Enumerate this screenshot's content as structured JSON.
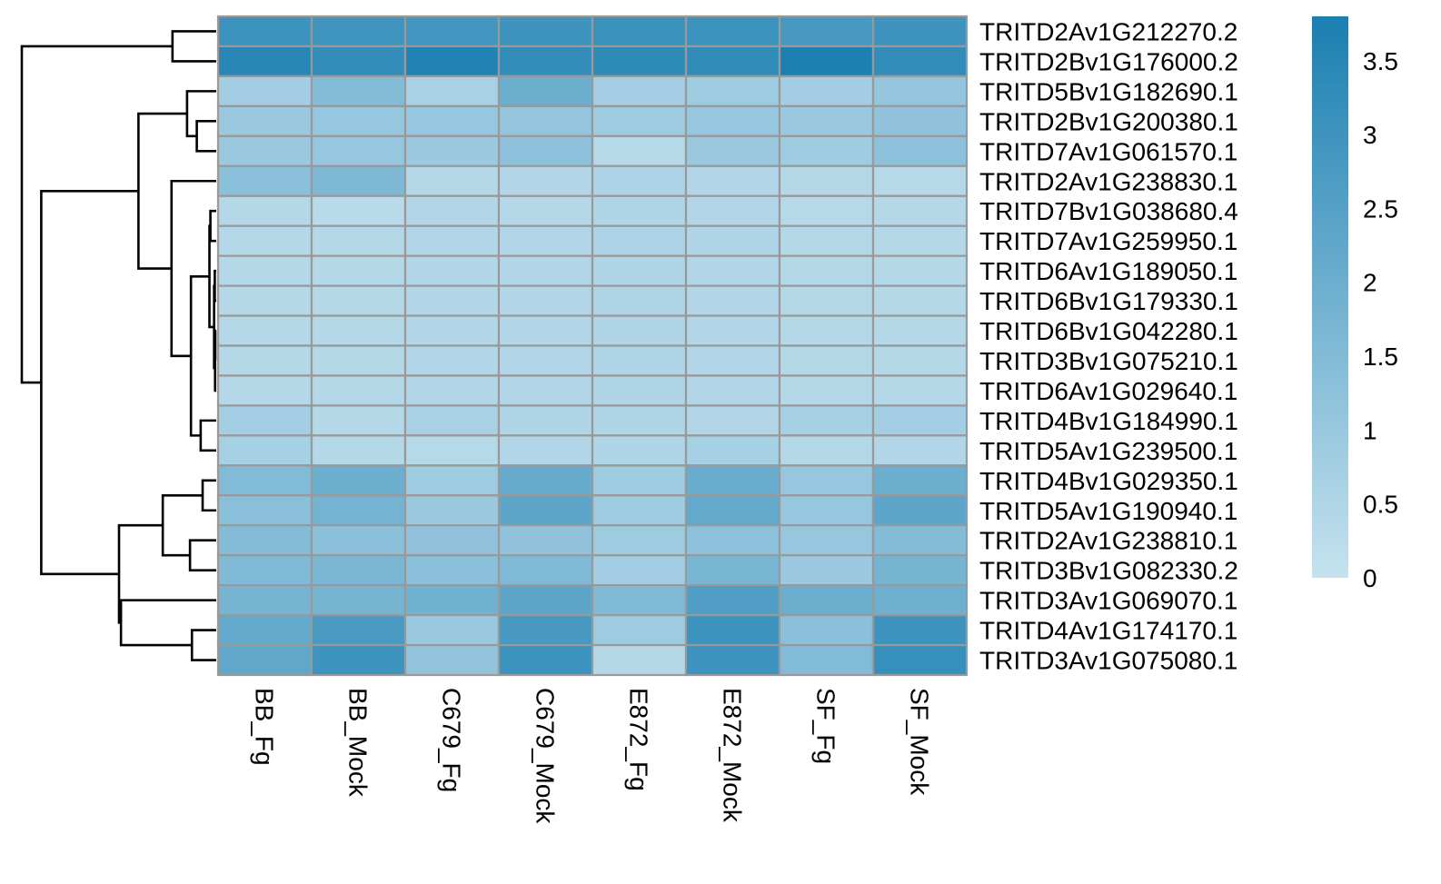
{
  "chart_data": {
    "type": "heatmap",
    "title": "",
    "xlabel": "",
    "ylabel": "",
    "columns": [
      "BB_Fg",
      "BB_Mock",
      "C679_Fg",
      "C679_Mock",
      "E872_Fg",
      "E872_Mock",
      "SF_Fg",
      "SF_Mock"
    ],
    "rows": [
      "TRITD2Av1G212270.2",
      "TRITD2Bv1G176000.2",
      "TRITD5Bv1G182690.1",
      "TRITD2Bv1G200380.1",
      "TRITD7Av1G061570.1",
      "TRITD2Av1G238830.1",
      "TRITD7Bv1G038680.4",
      "TRITD7Av1G259950.1",
      "TRITD6Av1G189050.1",
      "TRITD6Bv1G179330.1",
      "TRITD6Bv1G042280.1",
      "TRITD3Bv1G075210.1",
      "TRITD6Av1G029640.1",
      "TRITD4Bv1G184990.1",
      "TRITD5Av1G239500.1",
      "TRITD4Bv1G029350.1",
      "TRITD5Av1G190940.1",
      "TRITD2Av1G238810.1",
      "TRITD3Bv1G082330.2",
      "TRITD3Av1G069070.1",
      "TRITD4Av1G174170.1",
      "TRITD3Av1G075080.1"
    ],
    "values": [
      [
        3.05,
        2.95,
        2.9,
        3.0,
        3.1,
        3.05,
        2.8,
        3.0
      ],
      [
        3.5,
        3.25,
        3.65,
        3.25,
        3.35,
        3.3,
        3.75,
        3.25
      ],
      [
        0.8,
        1.45,
        0.65,
        2.0,
        0.75,
        0.9,
        0.8,
        1.1
      ],
      [
        1.0,
        1.05,
        1.05,
        1.1,
        0.9,
        1.05,
        1.0,
        1.2
      ],
      [
        1.0,
        1.05,
        0.95,
        1.25,
        0.35,
        1.0,
        0.85,
        1.25
      ],
      [
        1.3,
        1.6,
        0.4,
        0.45,
        0.55,
        0.45,
        0.4,
        0.35
      ],
      [
        0.4,
        0.3,
        0.45,
        0.4,
        0.5,
        0.45,
        0.35,
        0.4
      ],
      [
        0.4,
        0.4,
        0.45,
        0.45,
        0.55,
        0.5,
        0.4,
        0.4
      ],
      [
        0.4,
        0.4,
        0.45,
        0.45,
        0.5,
        0.45,
        0.4,
        0.4
      ],
      [
        0.4,
        0.4,
        0.45,
        0.45,
        0.5,
        0.45,
        0.4,
        0.4
      ],
      [
        0.4,
        0.4,
        0.45,
        0.45,
        0.5,
        0.45,
        0.4,
        0.4
      ],
      [
        0.4,
        0.4,
        0.45,
        0.45,
        0.5,
        0.45,
        0.4,
        0.4
      ],
      [
        0.4,
        0.4,
        0.45,
        0.45,
        0.5,
        0.45,
        0.4,
        0.4
      ],
      [
        0.75,
        0.4,
        0.65,
        0.5,
        0.5,
        0.45,
        0.7,
        0.75
      ],
      [
        0.7,
        0.4,
        0.35,
        0.45,
        0.5,
        0.7,
        0.4,
        0.45
      ],
      [
        1.5,
        2.0,
        0.9,
        2.1,
        0.9,
        2.05,
        1.05,
        2.0
      ],
      [
        1.35,
        1.8,
        0.95,
        2.3,
        0.9,
        2.2,
        1.05,
        2.3
      ],
      [
        1.45,
        1.3,
        1.2,
        1.2,
        0.9,
        1.25,
        1.05,
        1.45
      ],
      [
        1.55,
        1.65,
        1.3,
        1.55,
        0.8,
        1.7,
        0.95,
        1.75
      ],
      [
        1.75,
        1.75,
        1.85,
        2.3,
        1.55,
        2.6,
        2.0,
        1.95
      ],
      [
        2.2,
        2.75,
        1.0,
        2.8,
        0.9,
        3.05,
        1.3,
        3.0
      ],
      [
        2.25,
        3.0,
        1.15,
        3.05,
        0.4,
        3.0,
        1.5,
        3.15
      ]
    ],
    "legend": {
      "position": "right",
      "min": 0,
      "max": 3.8,
      "ticks": [
        0,
        0.5,
        1,
        1.5,
        2,
        2.5,
        3,
        3.5
      ],
      "tick_labels": [
        "0",
        "0.5",
        "1",
        "1.5",
        "2",
        "2.5",
        "3",
        "3.5"
      ],
      "colors": [
        "#c6e2ef",
        "#1a7fb1"
      ]
    },
    "cell_border_color": "#999999",
    "row_dendrogram": {
      "order": "left",
      "merges": [
        {
          "a": "r0",
          "b": "r1",
          "height": 0.45
        },
        {
          "a": "r3",
          "b": "r4",
          "height": 0.2
        },
        {
          "a": "r2",
          "b": "c1",
          "height": 0.3
        },
        {
          "a": "r6",
          "b": "r7",
          "height": 0.06
        },
        {
          "a": "r8",
          "b": "r9",
          "height": 0.015
        },
        {
          "a": "r10",
          "b": "r11",
          "height": 0.01
        },
        {
          "a": "r12",
          "b": "c5",
          "height": 0.012
        },
        {
          "a": "c4",
          "b": "c6",
          "height": 0.022
        },
        {
          "a": "c3",
          "b": "c7",
          "height": 0.07
        },
        {
          "a": "r13",
          "b": "r14",
          "height": 0.16
        },
        {
          "a": "c8",
          "b": "c9",
          "height": 0.26
        },
        {
          "a": "r5",
          "b": "c10",
          "height": 0.46
        },
        {
          "a": "c2",
          "b": "c11",
          "height": 0.8
        },
        {
          "a": "r15",
          "b": "r16",
          "height": 0.14
        },
        {
          "a": "r17",
          "b": "r18",
          "height": 0.27
        },
        {
          "a": "c13",
          "b": "c14",
          "height": 0.55
        },
        {
          "a": "r20",
          "b": "r21",
          "height": 0.25
        },
        {
          "a": "r19",
          "b": "c16",
          "height": 0.98
        },
        {
          "a": "c15",
          "b": "c17",
          "height": 1.0
        },
        {
          "a": "c12",
          "b": "c18",
          "height": 1.8
        },
        {
          "a": "c0",
          "b": "c19",
          "height": 2.0
        }
      ]
    }
  }
}
